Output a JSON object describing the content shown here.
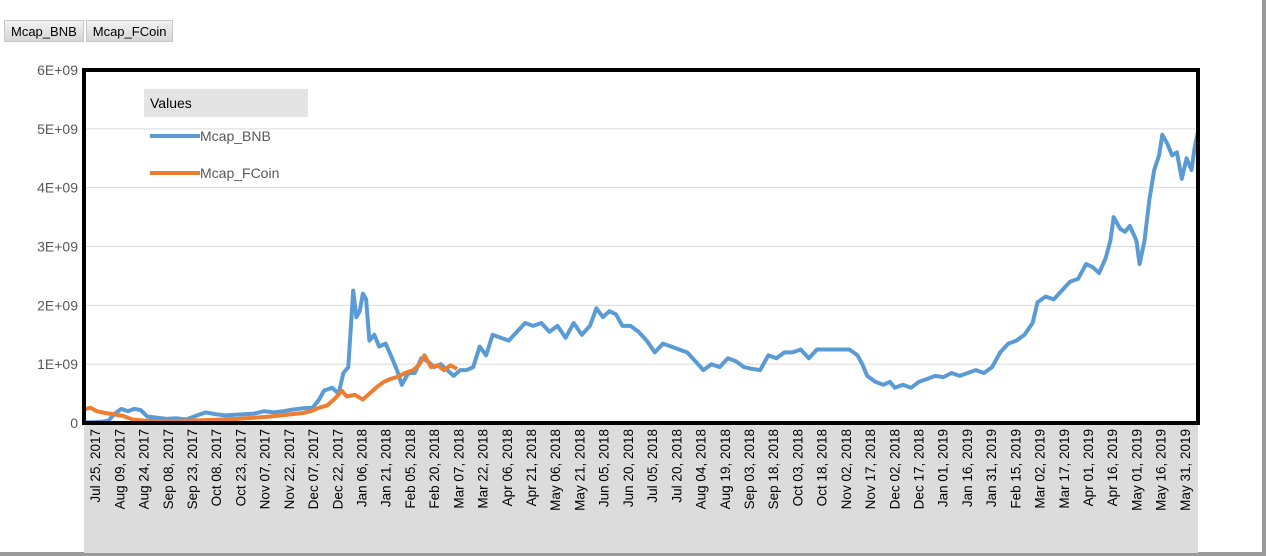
{
  "field_buttons": [
    {
      "label": "Mcap_BNB"
    },
    {
      "label": "Mcap_FCoin"
    }
  ],
  "legend": {
    "title": "Values",
    "items": [
      {
        "label": "Mcap_BNB",
        "color": "#5b9bd5"
      },
      {
        "label": "Mcap_FCoin",
        "color": "#ed7d31"
      }
    ]
  },
  "chart_data": {
    "type": "line",
    "title": "",
    "xlabel": "",
    "ylabel": "",
    "ylim": [
      0,
      6000000000
    ],
    "y_ticks": [
      "0",
      "1E+09",
      "2E+09",
      "3E+09",
      "4E+09",
      "5E+09",
      "6E+09"
    ],
    "x_range": [
      "2017-07-25",
      "2019-06-12"
    ],
    "x_tick_labels": [
      "Jul 25, 2017",
      "Aug 09, 2017",
      "Aug 24, 2017",
      "Sep 08, 2017",
      "Sep 23, 2017",
      "Oct 08, 2017",
      "Oct 23, 2017",
      "Nov 07, 2017",
      "Nov 22, 2017",
      "Dec 07, 2017",
      "Dec 22, 2017",
      "Jan 06, 2018",
      "Jan 21, 2018",
      "Feb 05, 2018",
      "Feb 20, 2018",
      "Mar 07, 2018",
      "Mar 22, 2018",
      "Apr 06, 2018",
      "Apr 21, 2018",
      "May 06, 2018",
      "May 21, 2018",
      "Jun 05, 2018",
      "Jun 20, 2018",
      "Jul 05, 2018",
      "Jul 20, 2018",
      "Aug 04, 2018",
      "Aug 19, 2018",
      "Sep 03, 2018",
      "Sep 18, 2018",
      "Oct 03, 2018",
      "Oct 18, 2018",
      "Nov 02, 2018",
      "Nov 17, 2018",
      "Dec 02, 2018",
      "Dec 17, 2018",
      "Jan 01, 2019",
      "Jan 16, 2019",
      "Jan 31, 2019",
      "Feb 15, 2019",
      "Mar 02, 2019",
      "Mar 17, 2019",
      "Apr 01, 2019",
      "Apr 16, 2019",
      "May 01, 2019",
      "May 16, 2019",
      "May 31, 2019"
    ],
    "grid": true,
    "legend_position": "top-left",
    "series": [
      {
        "name": "Mcap_BNB",
        "color": "#5b9bd5",
        "points": [
          [
            "2017-07-25",
            10000000
          ],
          [
            "2017-08-01",
            15000000
          ],
          [
            "2017-08-05",
            20000000
          ],
          [
            "2017-08-09",
            40000000
          ],
          [
            "2017-08-13",
            160000000
          ],
          [
            "2017-08-17",
            240000000
          ],
          [
            "2017-08-21",
            200000000
          ],
          [
            "2017-08-25",
            240000000
          ],
          [
            "2017-08-29",
            220000000
          ],
          [
            "2017-09-02",
            110000000
          ],
          [
            "2017-09-08",
            90000000
          ],
          [
            "2017-09-14",
            70000000
          ],
          [
            "2017-09-20",
            80000000
          ],
          [
            "2017-09-26",
            60000000
          ],
          [
            "2017-10-02",
            120000000
          ],
          [
            "2017-10-08",
            180000000
          ],
          [
            "2017-10-14",
            150000000
          ],
          [
            "2017-10-20",
            130000000
          ],
          [
            "2017-10-26",
            140000000
          ],
          [
            "2017-11-01",
            150000000
          ],
          [
            "2017-11-07",
            160000000
          ],
          [
            "2017-11-13",
            200000000
          ],
          [
            "2017-11-19",
            180000000
          ],
          [
            "2017-11-25",
            200000000
          ],
          [
            "2017-12-01",
            230000000
          ],
          [
            "2017-12-07",
            250000000
          ],
          [
            "2017-12-13",
            260000000
          ],
          [
            "2017-12-17",
            400000000
          ],
          [
            "2017-12-20",
            550000000
          ],
          [
            "2017-12-25",
            600000000
          ],
          [
            "2017-12-29",
            500000000
          ],
          [
            "2018-01-01",
            850000000
          ],
          [
            "2018-01-04",
            950000000
          ],
          [
            "2018-01-07",
            2250000000
          ],
          [
            "2018-01-09",
            1800000000
          ],
          [
            "2018-01-11",
            1900000000
          ],
          [
            "2018-01-13",
            2200000000
          ],
          [
            "2018-01-15",
            2100000000
          ],
          [
            "2018-01-17",
            1400000000
          ],
          [
            "2018-01-20",
            1500000000
          ],
          [
            "2018-01-23",
            1300000000
          ],
          [
            "2018-01-27",
            1350000000
          ],
          [
            "2018-01-31",
            1100000000
          ],
          [
            "2018-02-03",
            900000000
          ],
          [
            "2018-02-06",
            650000000
          ],
          [
            "2018-02-10",
            850000000
          ],
          [
            "2018-02-14",
            850000000
          ],
          [
            "2018-02-18",
            1100000000
          ],
          [
            "2018-02-22",
            1050000000
          ],
          [
            "2018-02-26",
            950000000
          ],
          [
            "2018-03-02",
            1000000000
          ],
          [
            "2018-03-06",
            900000000
          ],
          [
            "2018-03-10",
            800000000
          ],
          [
            "2018-03-14",
            900000000
          ],
          [
            "2018-03-18",
            900000000
          ],
          [
            "2018-03-22",
            950000000
          ],
          [
            "2018-03-26",
            1300000000
          ],
          [
            "2018-03-30",
            1150000000
          ],
          [
            "2018-04-03",
            1500000000
          ],
          [
            "2018-04-08",
            1450000000
          ],
          [
            "2018-04-13",
            1400000000
          ],
          [
            "2018-04-18",
            1550000000
          ],
          [
            "2018-04-23",
            1700000000
          ],
          [
            "2018-04-28",
            1650000000
          ],
          [
            "2018-05-03",
            1700000000
          ],
          [
            "2018-05-08",
            1550000000
          ],
          [
            "2018-05-13",
            1650000000
          ],
          [
            "2018-05-18",
            1450000000
          ],
          [
            "2018-05-23",
            1700000000
          ],
          [
            "2018-05-28",
            1500000000
          ],
          [
            "2018-06-02",
            1650000000
          ],
          [
            "2018-06-06",
            1950000000
          ],
          [
            "2018-06-10",
            1800000000
          ],
          [
            "2018-06-14",
            1900000000
          ],
          [
            "2018-06-18",
            1850000000
          ],
          [
            "2018-06-22",
            1650000000
          ],
          [
            "2018-06-27",
            1650000000
          ],
          [
            "2018-07-02",
            1550000000
          ],
          [
            "2018-07-07",
            1400000000
          ],
          [
            "2018-07-12",
            1200000000
          ],
          [
            "2018-07-17",
            1350000000
          ],
          [
            "2018-07-22",
            1300000000
          ],
          [
            "2018-07-27",
            1250000000
          ],
          [
            "2018-08-01",
            1200000000
          ],
          [
            "2018-08-06",
            1050000000
          ],
          [
            "2018-08-11",
            900000000
          ],
          [
            "2018-08-16",
            1000000000
          ],
          [
            "2018-08-21",
            950000000
          ],
          [
            "2018-08-26",
            1100000000
          ],
          [
            "2018-08-31",
            1050000000
          ],
          [
            "2018-09-05",
            950000000
          ],
          [
            "2018-09-10",
            920000000
          ],
          [
            "2018-09-15",
            900000000
          ],
          [
            "2018-09-20",
            1150000000
          ],
          [
            "2018-09-25",
            1100000000
          ],
          [
            "2018-09-30",
            1200000000
          ],
          [
            "2018-10-05",
            1200000000
          ],
          [
            "2018-10-10",
            1250000000
          ],
          [
            "2018-10-15",
            1100000000
          ],
          [
            "2018-10-20",
            1250000000
          ],
          [
            "2018-10-25",
            1250000000
          ],
          [
            "2018-10-30",
            1250000000
          ],
          [
            "2018-11-04",
            1250000000
          ],
          [
            "2018-11-09",
            1250000000
          ],
          [
            "2018-11-14",
            1150000000
          ],
          [
            "2018-11-17",
            1000000000
          ],
          [
            "2018-11-20",
            800000000
          ],
          [
            "2018-11-25",
            700000000
          ],
          [
            "2018-11-30",
            650000000
          ],
          [
            "2018-12-04",
            700000000
          ],
          [
            "2018-12-07",
            600000000
          ],
          [
            "2018-12-12",
            650000000
          ],
          [
            "2018-12-17",
            600000000
          ],
          [
            "2018-12-22",
            700000000
          ],
          [
            "2018-12-27",
            750000000
          ],
          [
            "2019-01-01",
            800000000
          ],
          [
            "2019-01-06",
            780000000
          ],
          [
            "2019-01-11",
            850000000
          ],
          [
            "2019-01-16",
            800000000
          ],
          [
            "2019-01-21",
            850000000
          ],
          [
            "2019-01-26",
            900000000
          ],
          [
            "2019-01-31",
            850000000
          ],
          [
            "2019-02-05",
            950000000
          ],
          [
            "2019-02-10",
            1200000000
          ],
          [
            "2019-02-15",
            1350000000
          ],
          [
            "2019-02-20",
            1400000000
          ],
          [
            "2019-02-25",
            1500000000
          ],
          [
            "2019-03-02",
            1700000000
          ],
          [
            "2019-03-05",
            2050000000
          ],
          [
            "2019-03-10",
            2150000000
          ],
          [
            "2019-03-15",
            2100000000
          ],
          [
            "2019-03-20",
            2250000000
          ],
          [
            "2019-03-25",
            2400000000
          ],
          [
            "2019-03-30",
            2450000000
          ],
          [
            "2019-04-04",
            2700000000
          ],
          [
            "2019-04-08",
            2650000000
          ],
          [
            "2019-04-12",
            2550000000
          ],
          [
            "2019-04-16",
            2800000000
          ],
          [
            "2019-04-19",
            3100000000
          ],
          [
            "2019-04-21",
            3500000000
          ],
          [
            "2019-04-25",
            3300000000
          ],
          [
            "2019-04-28",
            3250000000
          ],
          [
            "2019-05-01",
            3350000000
          ],
          [
            "2019-05-05",
            3100000000
          ],
          [
            "2019-05-07",
            2700000000
          ],
          [
            "2019-05-10",
            3100000000
          ],
          [
            "2019-05-13",
            3800000000
          ],
          [
            "2019-05-16",
            4300000000
          ],
          [
            "2019-05-19",
            4550000000
          ],
          [
            "2019-05-21",
            4900000000
          ],
          [
            "2019-05-24",
            4750000000
          ],
          [
            "2019-05-27",
            4550000000
          ],
          [
            "2019-05-30",
            4600000000
          ],
          [
            "2019-06-02",
            4150000000
          ],
          [
            "2019-06-05",
            4500000000
          ],
          [
            "2019-06-08",
            4300000000
          ],
          [
            "2019-06-10",
            4700000000
          ],
          [
            "2019-06-12",
            4950000000
          ]
        ]
      },
      {
        "name": "Mcap_FCoin",
        "color": "#ed7d31",
        "points": [
          [
            "2017-07-25",
            230000000
          ],
          [
            "2017-07-29",
            260000000
          ],
          [
            "2017-08-02",
            200000000
          ],
          [
            "2017-08-07",
            170000000
          ],
          [
            "2017-08-12",
            150000000
          ],
          [
            "2017-08-18",
            120000000
          ],
          [
            "2017-08-24",
            60000000
          ],
          [
            "2017-08-31",
            40000000
          ],
          [
            "2017-09-08",
            30000000
          ],
          [
            "2017-09-18",
            30000000
          ],
          [
            "2017-09-28",
            40000000
          ],
          [
            "2017-10-08",
            50000000
          ],
          [
            "2017-10-18",
            60000000
          ],
          [
            "2017-10-28",
            70000000
          ],
          [
            "2017-11-07",
            90000000
          ],
          [
            "2017-11-17",
            110000000
          ],
          [
            "2017-11-27",
            140000000
          ],
          [
            "2017-12-07",
            170000000
          ],
          [
            "2017-12-12",
            200000000
          ],
          [
            "2017-12-17",
            260000000
          ],
          [
            "2017-12-22",
            300000000
          ],
          [
            "2017-12-27",
            420000000
          ],
          [
            "2017-12-31",
            550000000
          ],
          [
            "2018-01-03",
            450000000
          ],
          [
            "2018-01-08",
            480000000
          ],
          [
            "2018-01-13",
            400000000
          ],
          [
            "2018-01-17",
            500000000
          ],
          [
            "2018-01-22",
            620000000
          ],
          [
            "2018-01-26",
            700000000
          ],
          [
            "2018-01-30",
            750000000
          ],
          [
            "2018-02-03",
            780000000
          ],
          [
            "2018-02-08",
            850000000
          ],
          [
            "2018-02-13",
            900000000
          ],
          [
            "2018-02-17",
            1000000000
          ],
          [
            "2018-02-20",
            1150000000
          ],
          [
            "2018-02-24",
            950000000
          ],
          [
            "2018-02-28",
            980000000
          ],
          [
            "2018-03-04",
            900000000
          ],
          [
            "2018-03-08",
            980000000
          ],
          [
            "2018-03-12",
            920000000
          ]
        ]
      }
    ]
  }
}
